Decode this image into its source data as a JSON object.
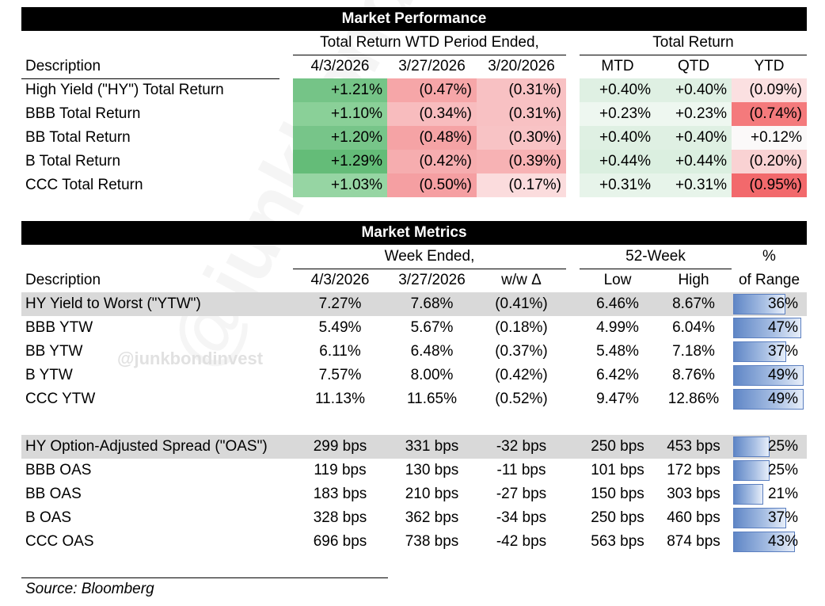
{
  "performance": {
    "title": "Market Performance",
    "group_wtd": "Total Return WTD Period Ended,",
    "group_tr": "Total Return",
    "col_desc": "Description",
    "cols": [
      "4/3/2026",
      "3/27/2026",
      "3/20/2026",
      "MTD",
      "QTD",
      "YTD"
    ],
    "rows": [
      {
        "label": "High Yield (\"HY\") Total Return",
        "values": [
          "+1.21%",
          "(0.47%)",
          "(0.31%)",
          "+0.40%",
          "+0.40%",
          "(0.09%)"
        ],
        "colors": [
          "#75c487",
          "#f6a6a8",
          "#f8c1c3",
          "#dff0e3",
          "#dff0e3",
          "#fbe0e1"
        ]
      },
      {
        "label": "BBB Total Return",
        "values": [
          "+1.10%",
          "(0.34%)",
          "(0.31%)",
          "+0.23%",
          "+0.23%",
          "(0.74%)"
        ],
        "colors": [
          "#8ad098",
          "#f8bcbe",
          "#f8c1c3",
          "#eef7f0",
          "#eef7f0",
          "#f47a7c"
        ]
      },
      {
        "label": "BB Total Return",
        "values": [
          "+1.20%",
          "(0.48%)",
          "(0.30%)",
          "+0.40%",
          "+0.40%",
          "+0.12%"
        ],
        "colors": [
          "#77c589",
          "#f5a3a5",
          "#f8c3c5",
          "#dff0e3",
          "#dff0e3",
          "#fbf9f9"
        ]
      },
      {
        "label": "B Total Return",
        "values": [
          "+1.29%",
          "(0.42%)",
          "(0.39%)",
          "+0.44%",
          "+0.44%",
          "(0.20%)"
        ],
        "colors": [
          "#64bc78",
          "#f6adaf",
          "#f7b2b4",
          "#dbefe0",
          "#dbefe0",
          "#f9d2d3"
        ]
      },
      {
        "label": "CCC Total Return",
        "values": [
          "+1.03%",
          "(0.50%)",
          "(0.17%)",
          "+0.31%",
          "+0.31%",
          "(0.95%)"
        ],
        "colors": [
          "#96d5a3",
          "#f59fa2",
          "#fbdcdd",
          "#e7f4ea",
          "#e7f4ea",
          "#f2696c"
        ]
      }
    ]
  },
  "metrics": {
    "title": "Market Metrics",
    "group_week": "Week Ended,",
    "group_52": "52-Week",
    "group_pct_top": "%",
    "col_desc": "Description",
    "cols": [
      "4/3/2026",
      "3/27/2026",
      "w/w Δ",
      "Low",
      "High",
      "of Range"
    ],
    "ytw_rows": [
      {
        "label": "HY Yield to Worst (\"YTW\")",
        "values": [
          "7.27%",
          "7.68%",
          "(0.41%)",
          "6.46%",
          "8.67%"
        ],
        "pct": "36%",
        "pct_value": 0.36,
        "highlight": true
      },
      {
        "label": "BBB YTW",
        "values": [
          "5.49%",
          "5.67%",
          "(0.18%)",
          "4.99%",
          "6.04%"
        ],
        "pct": "47%",
        "pct_value": 0.47,
        "highlight": false
      },
      {
        "label": "BB YTW",
        "values": [
          "6.11%",
          "6.48%",
          "(0.37%)",
          "5.48%",
          "7.18%"
        ],
        "pct": "37%",
        "pct_value": 0.37,
        "highlight": false
      },
      {
        "label": "B YTW",
        "values": [
          "7.57%",
          "8.00%",
          "(0.42%)",
          "6.42%",
          "8.76%"
        ],
        "pct": "49%",
        "pct_value": 0.49,
        "highlight": false
      },
      {
        "label": "CCC YTW",
        "values": [
          "11.13%",
          "11.65%",
          "(0.52%)",
          "9.47%",
          "12.86%"
        ],
        "pct": "49%",
        "pct_value": 0.49,
        "highlight": false
      }
    ],
    "oas_rows": [
      {
        "label": "HY Option-Adjusted Spread (\"OAS\")",
        "values": [
          "299 bps",
          "331 bps",
          "-32 bps",
          "250 bps",
          "453 bps"
        ],
        "pct": "25%",
        "pct_value": 0.25,
        "highlight": true
      },
      {
        "label": "BBB OAS",
        "values": [
          "119 bps",
          "130 bps",
          "-11 bps",
          "101 bps",
          "172 bps"
        ],
        "pct": "25%",
        "pct_value": 0.25,
        "highlight": false
      },
      {
        "label": "BB OAS",
        "values": [
          "183 bps",
          "210 bps",
          "-27 bps",
          "150 bps",
          "303 bps"
        ],
        "pct": "21%",
        "pct_value": 0.21,
        "highlight": false
      },
      {
        "label": "B OAS",
        "values": [
          "328 bps",
          "362 bps",
          "-34 bps",
          "250 bps",
          "460 bps"
        ],
        "pct": "37%",
        "pct_value": 0.37,
        "highlight": false
      },
      {
        "label": "CCC OAS",
        "values": [
          "696 bps",
          "738 bps",
          "-42 bps",
          "563 bps",
          "874 bps"
        ],
        "pct": "43%",
        "pct_value": 0.43,
        "highlight": false
      }
    ]
  },
  "watermark": "@junkbondinvest",
  "source": "Source: Bloomberg"
}
